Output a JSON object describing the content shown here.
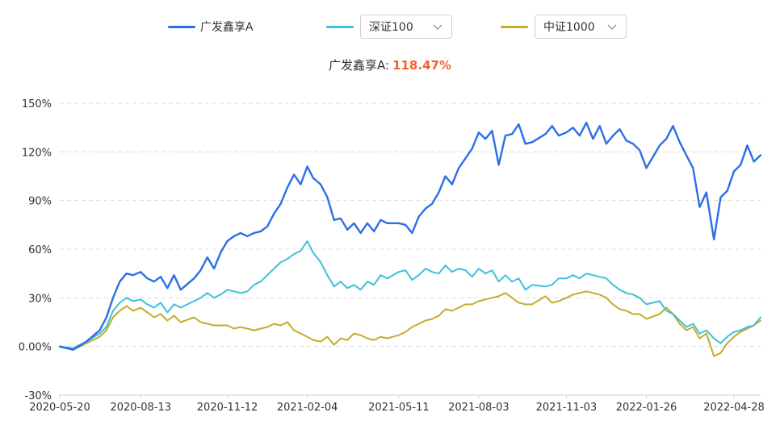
{
  "legend": {
    "fund": {
      "label": "广发鑫享A",
      "color": "#2b6fe6"
    },
    "index1": {
      "label": "深证100",
      "color": "#3ec1d8"
    },
    "index2": {
      "label": "中证1000",
      "color": "#c3ad2b"
    }
  },
  "headline": {
    "label": "广发鑫享A:",
    "value": "118.47%"
  },
  "chart_data": {
    "type": "line",
    "title": "",
    "xlabel": "",
    "ylabel": "",
    "y_unit": "%",
    "ylim": [
      -30,
      150
    ],
    "yticks": [
      -30,
      0,
      30,
      60,
      90,
      120,
      150
    ],
    "ytick_labels": [
      "-30%",
      "0.00%",
      "30%",
      "60%",
      "90%",
      "120%",
      "150%"
    ],
    "xticks": [
      "2020-05-20",
      "2020-08-13",
      "2020-11-12",
      "2021-02-04",
      "2021-05-11",
      "2021-08-03",
      "2021-11-03",
      "2022-01-26",
      "2022-04-28"
    ],
    "grid": true,
    "legend_position": "top",
    "x": [
      "2020-05-20",
      "2020-06-03",
      "2020-06-17",
      "2020-07-01",
      "2020-07-08",
      "2020-07-15",
      "2020-07-22",
      "2020-07-29",
      "2020-08-05",
      "2020-08-13",
      "2020-08-20",
      "2020-08-27",
      "2020-09-03",
      "2020-09-10",
      "2020-09-17",
      "2020-09-24",
      "2020-10-08",
      "2020-10-15",
      "2020-10-22",
      "2020-10-29",
      "2020-11-05",
      "2020-11-12",
      "2020-11-19",
      "2020-11-26",
      "2020-12-03",
      "2020-12-10",
      "2020-12-17",
      "2020-12-24",
      "2020-12-31",
      "2021-01-07",
      "2021-01-14",
      "2021-01-21",
      "2021-01-28",
      "2021-02-04",
      "2021-02-10",
      "2021-02-18",
      "2021-02-25",
      "2021-03-04",
      "2021-03-11",
      "2021-03-18",
      "2021-03-25",
      "2021-04-01",
      "2021-04-08",
      "2021-04-15",
      "2021-04-22",
      "2021-04-29",
      "2021-05-11",
      "2021-05-18",
      "2021-05-25",
      "2021-06-01",
      "2021-06-08",
      "2021-06-15",
      "2021-06-22",
      "2021-06-29",
      "2021-07-06",
      "2021-07-13",
      "2021-07-20",
      "2021-07-27",
      "2021-08-03",
      "2021-08-10",
      "2021-08-17",
      "2021-08-24",
      "2021-08-31",
      "2021-09-07",
      "2021-09-14",
      "2021-09-21",
      "2021-09-28",
      "2021-10-12",
      "2021-10-19",
      "2021-10-26",
      "2021-11-03",
      "2021-11-10",
      "2021-11-17",
      "2021-11-24",
      "2021-12-01",
      "2021-12-08",
      "2021-12-15",
      "2021-12-22",
      "2021-12-29",
      "2022-01-05",
      "2022-01-12",
      "2022-01-19",
      "2022-01-26",
      "2022-02-09",
      "2022-02-16",
      "2022-02-23",
      "2022-03-02",
      "2022-03-09",
      "2022-03-16",
      "2022-03-23",
      "2022-03-30",
      "2022-04-07",
      "2022-04-14",
      "2022-04-21",
      "2022-04-28",
      "2022-05-05",
      "2022-05-12",
      "2022-05-19",
      "2022-05-26"
    ],
    "series": [
      {
        "name": "广发鑫享A",
        "color": "#2b6fe6",
        "values": [
          0,
          -2,
          3,
          10,
          18,
          30,
          40,
          45,
          44,
          46,
          42,
          40,
          43,
          36,
          44,
          35,
          42,
          47,
          55,
          48,
          58,
          65,
          68,
          70,
          68,
          70,
          71,
          74,
          82,
          88,
          98,
          106,
          100,
          111,
          104,
          100,
          92,
          78,
          79,
          72,
          76,
          70,
          76,
          71,
          78,
          76,
          76,
          75,
          70,
          80,
          85,
          88,
          95,
          105,
          100,
          110,
          116,
          122,
          132,
          128,
          133,
          112,
          130,
          131,
          137,
          125,
          126,
          131,
          136,
          130,
          132,
          135,
          130,
          138,
          128,
          136,
          125,
          130,
          134,
          127,
          125,
          121,
          110,
          124,
          128,
          136,
          126,
          118,
          110,
          86,
          95,
          66,
          92,
          96,
          108,
          112,
          124,
          114,
          118
        ]
      },
      {
        "name": "深证100",
        "color": "#3ec1d8",
        "values": [
          0,
          -1,
          3,
          8,
          12,
          22,
          27,
          30,
          28,
          29,
          26,
          24,
          27,
          21,
          26,
          24,
          28,
          30,
          33,
          30,
          32,
          35,
          34,
          33,
          34,
          38,
          40,
          44,
          48,
          52,
          54,
          57,
          59,
          65,
          58,
          52,
          44,
          37,
          40,
          36,
          38,
          35,
          40,
          38,
          44,
          42,
          46,
          47,
          41,
          44,
          48,
          46,
          45,
          50,
          46,
          48,
          47,
          43,
          48,
          45,
          47,
          40,
          44,
          40,
          42,
          35,
          38,
          37,
          38,
          42,
          42,
          44,
          42,
          45,
          44,
          43,
          42,
          38,
          35,
          33,
          32,
          30,
          26,
          28,
          22,
          20,
          16,
          12,
          14,
          8,
          10,
          5,
          2,
          6,
          9,
          10,
          12,
          13,
          18
        ]
      },
      {
        "name": "中证1000",
        "color": "#c3ad2b",
        "values": [
          0,
          -2,
          2,
          6,
          10,
          18,
          22,
          25,
          22,
          24,
          21,
          18,
          20,
          16,
          19,
          15,
          18,
          15,
          14,
          13,
          13,
          13,
          11,
          12,
          11,
          10,
          11,
          12,
          14,
          13,
          15,
          10,
          8,
          6,
          4,
          3,
          6,
          1,
          5,
          4,
          8,
          7,
          5,
          4,
          6,
          5,
          7,
          9,
          12,
          14,
          16,
          17,
          19,
          23,
          22,
          24,
          26,
          26,
          28,
          29,
          30,
          31,
          33,
          30,
          27,
          26,
          26,
          31,
          27,
          28,
          30,
          32,
          33,
          34,
          33,
          32,
          30,
          26,
          23,
          22,
          20,
          20,
          17,
          20,
          24,
          20,
          14,
          10,
          12,
          5,
          8,
          -6,
          -4,
          2,
          6,
          9,
          11,
          13,
          16
        ]
      }
    ]
  }
}
